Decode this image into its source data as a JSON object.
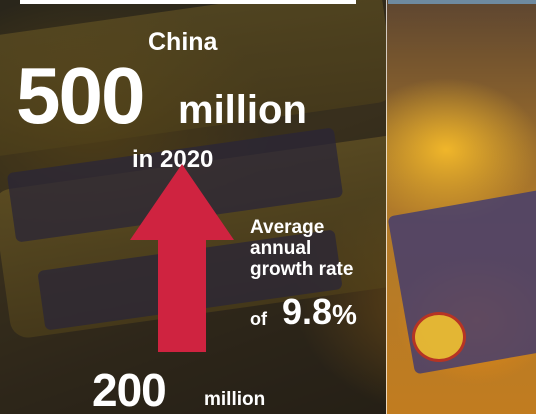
{
  "headline": {
    "country": "China",
    "current_value": "500",
    "current_unit": "million",
    "current_year": "in 2020"
  },
  "growth": {
    "label_lines": [
      "Average",
      "annual",
      "growth rate"
    ],
    "prefix": "of",
    "rate_value": "9.8",
    "rate_symbol": "%"
  },
  "baseline": {
    "value": "200",
    "unit": "million"
  },
  "colors": {
    "arrow": "#cf2340",
    "text": "#ffffff"
  },
  "icons": {
    "arrow": "up-arrow-icon"
  }
}
